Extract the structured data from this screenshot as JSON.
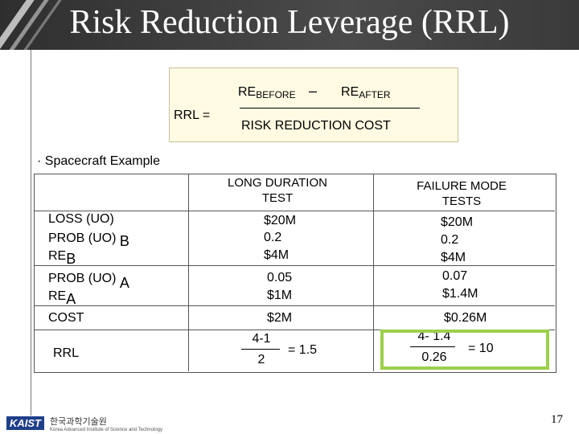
{
  "slide": {
    "title": "Risk Reduction Leverage (RRL)",
    "page_number": "17"
  },
  "formula": {
    "lhs": "RRL =",
    "re": "RE",
    "before_sub": "BEFORE",
    "minus": "–",
    "after_sub": "AFTER",
    "denominator": "RISK REDUCTION COST"
  },
  "bullet": {
    "marker": "·",
    "text": "Spacecraft Example"
  },
  "table": {
    "headers": [
      "LONG DURATION TEST",
      "FAILURE MODE TESTS"
    ],
    "rows": {
      "loss": "LOSS (UO)",
      "prob_b": "PROB (UO)",
      "prob_b_sub": "B",
      "re_b": "RE",
      "re_b_sub": "B",
      "prob_a": "PROB (UO)",
      "prob_a_sub": "A",
      "re_a": "RE",
      "re_a_sub": "A",
      "cost": "COST",
      "rrl": "RRL"
    },
    "long_duration": {
      "loss": "$20M",
      "prob_b": "0.2",
      "re_b": "$4M",
      "prob_a": "0.05",
      "re_a": "$1M",
      "cost": "$2M",
      "rrl_num": "4-1",
      "rrl_den": "2",
      "rrl_result": "= 1.5"
    },
    "failure_mode": {
      "loss": "$20M",
      "prob_b": "0.2",
      "re_b": "$4M",
      "prob_a": "0.07",
      "re_a": "$1.4M",
      "cost": "$0.26M",
      "rrl_num": "4- 1.4",
      "rrl_den": "0.26",
      "rrl_result": "= 10"
    }
  },
  "footer": {
    "logo": "KAIST",
    "institute": "한국과학기술원",
    "institute_sub": "Korea Advanced Institute of Science and Technology"
  },
  "colors": {
    "title_bar": "#3a3a3a",
    "formula_bg": "#fffbe3",
    "highlight": "#9bd14a",
    "logo_blue": "#1f3f8a"
  }
}
